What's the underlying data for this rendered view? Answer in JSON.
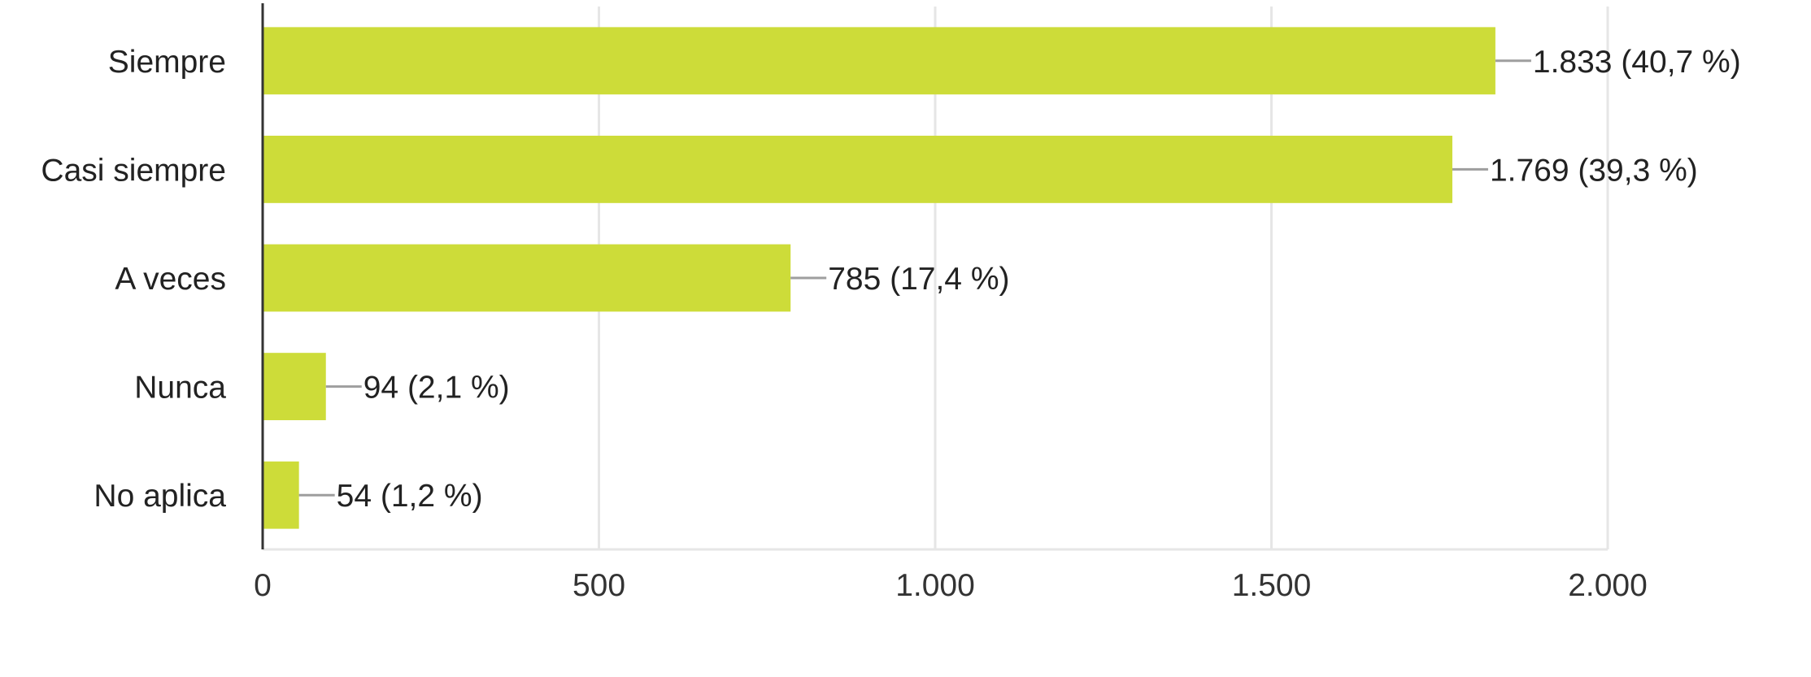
{
  "chart_data": {
    "type": "bar",
    "orientation": "horizontal",
    "categories": [
      "Siempre",
      "Casi siempre",
      "A veces",
      "Nunca",
      "No aplica"
    ],
    "values": [
      1833,
      1769,
      785,
      94,
      54
    ],
    "data_labels": [
      "1.833 (40,7 %)",
      "1.769 (39,3 %)",
      "785 (17,4 %)",
      "94 (2,1 %)",
      "54 (1,2 %)"
    ],
    "xlim": [
      0,
      2000
    ],
    "xticks": [
      0,
      500,
      1000,
      1500,
      2000
    ],
    "xtick_labels": [
      "0",
      "500",
      "1.000",
      "1.500",
      "2.000"
    ],
    "grid": true,
    "legend": "none",
    "colors": {
      "bar": "#cddc39",
      "grid": "#e6e6e6",
      "axis": "#333333",
      "leader": "#9e9e9e",
      "text": "#222222"
    }
  }
}
